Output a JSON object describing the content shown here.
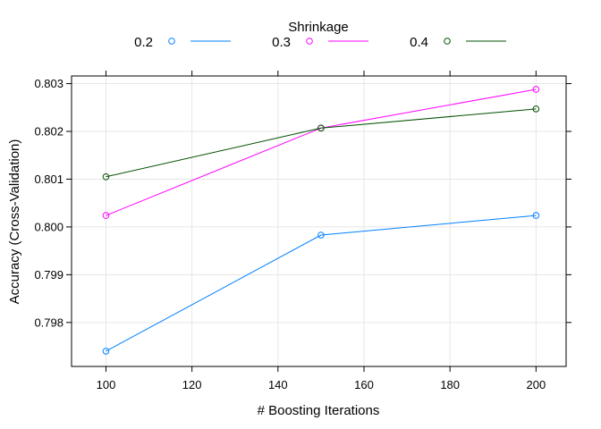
{
  "chart_data": {
    "type": "line",
    "x": [
      100,
      150,
      200
    ],
    "xlabel": "# Boosting Iterations",
    "ylabel": "Accuracy (Cross-Validation)",
    "xlim": [
      92,
      207
    ],
    "ylim": [
      0.79708,
      0.80316
    ],
    "xticks": [
      "100",
      "120",
      "140",
      "160",
      "180",
      "200"
    ],
    "yticks": [
      "0.798",
      "0.799",
      "0.800",
      "0.801",
      "0.802",
      "0.803"
    ],
    "grid": true,
    "legend": {
      "title": "Shrinkage",
      "placement": "top"
    },
    "series": [
      {
        "name": "0.2",
        "color": "#0080ff",
        "values": [
          0.7974,
          0.79983,
          0.80024
        ]
      },
      {
        "name": "0.3",
        "color": "#ff00ff",
        "values": [
          0.80024,
          0.80207,
          0.80288
        ]
      },
      {
        "name": "0.4",
        "color": "#005000",
        "values": [
          0.80105,
          0.80207,
          0.80247
        ]
      }
    ]
  }
}
